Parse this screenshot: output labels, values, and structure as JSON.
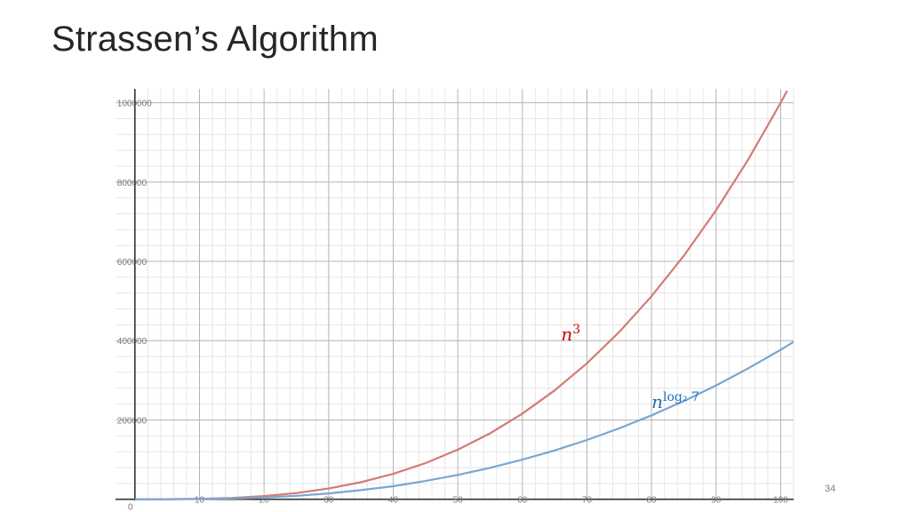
{
  "slide": {
    "title": "Strassen’s Algorithm",
    "page_number": "34"
  },
  "chart_data": {
    "type": "line",
    "title": "",
    "xlabel": "",
    "ylabel": "",
    "xlim": [
      -3,
      102
    ],
    "ylim": [
      -3000,
      1035000
    ],
    "x_ticks": [
      0,
      10,
      20,
      30,
      40,
      50,
      60,
      70,
      80,
      90,
      100
    ],
    "x_tick_labels": [
      "0",
      "10",
      "20",
      "30",
      "40",
      "50",
      "60",
      "70",
      "80",
      "90",
      "100"
    ],
    "y_ticks": [
      200000,
      400000,
      600000,
      800000,
      1000000
    ],
    "y_tick_labels": [
      "200000",
      "400000",
      "600000",
      "800000",
      "1000000"
    ],
    "grid": true,
    "series": [
      {
        "name": "n^3",
        "label_base": "n",
        "label_sup": "3",
        "color": "#d47b76",
        "label_color": "#cc0000",
        "label_at": [
          66,
          400000
        ],
        "x": [
          0,
          5,
          10,
          15,
          20,
          25,
          30,
          35,
          40,
          45,
          50,
          55,
          60,
          65,
          70,
          75,
          80,
          85,
          90,
          95,
          100,
          101
        ],
        "y": [
          0,
          125,
          1000,
          3375,
          8000,
          15625,
          27000,
          42875,
          64000,
          91125,
          125000,
          166375,
          216000,
          274625,
          343000,
          421875,
          512000,
          614125,
          729000,
          857375,
          1000000,
          1030301
        ]
      },
      {
        "name": "n^log₂ 7",
        "label_base": "n",
        "label_sup": "log₂ 7",
        "color": "#7aa6d0",
        "label_color": "#1f6fb4",
        "label_at": [
          80,
          230000
        ],
        "x": [
          0,
          5,
          10,
          15,
          20,
          25,
          30,
          35,
          40,
          45,
          50,
          55,
          60,
          65,
          70,
          75,
          80,
          85,
          90,
          95,
          100,
          102
        ],
        "y": [
          0,
          91,
          637,
          1948,
          4467,
          8561,
          14602,
          22952,
          32900,
          46000,
          61400,
          79300,
          99800,
          123100,
          149400,
          178900,
          211600,
          247600,
          287100,
          330300,
          377000,
          397000
        ]
      }
    ]
  }
}
